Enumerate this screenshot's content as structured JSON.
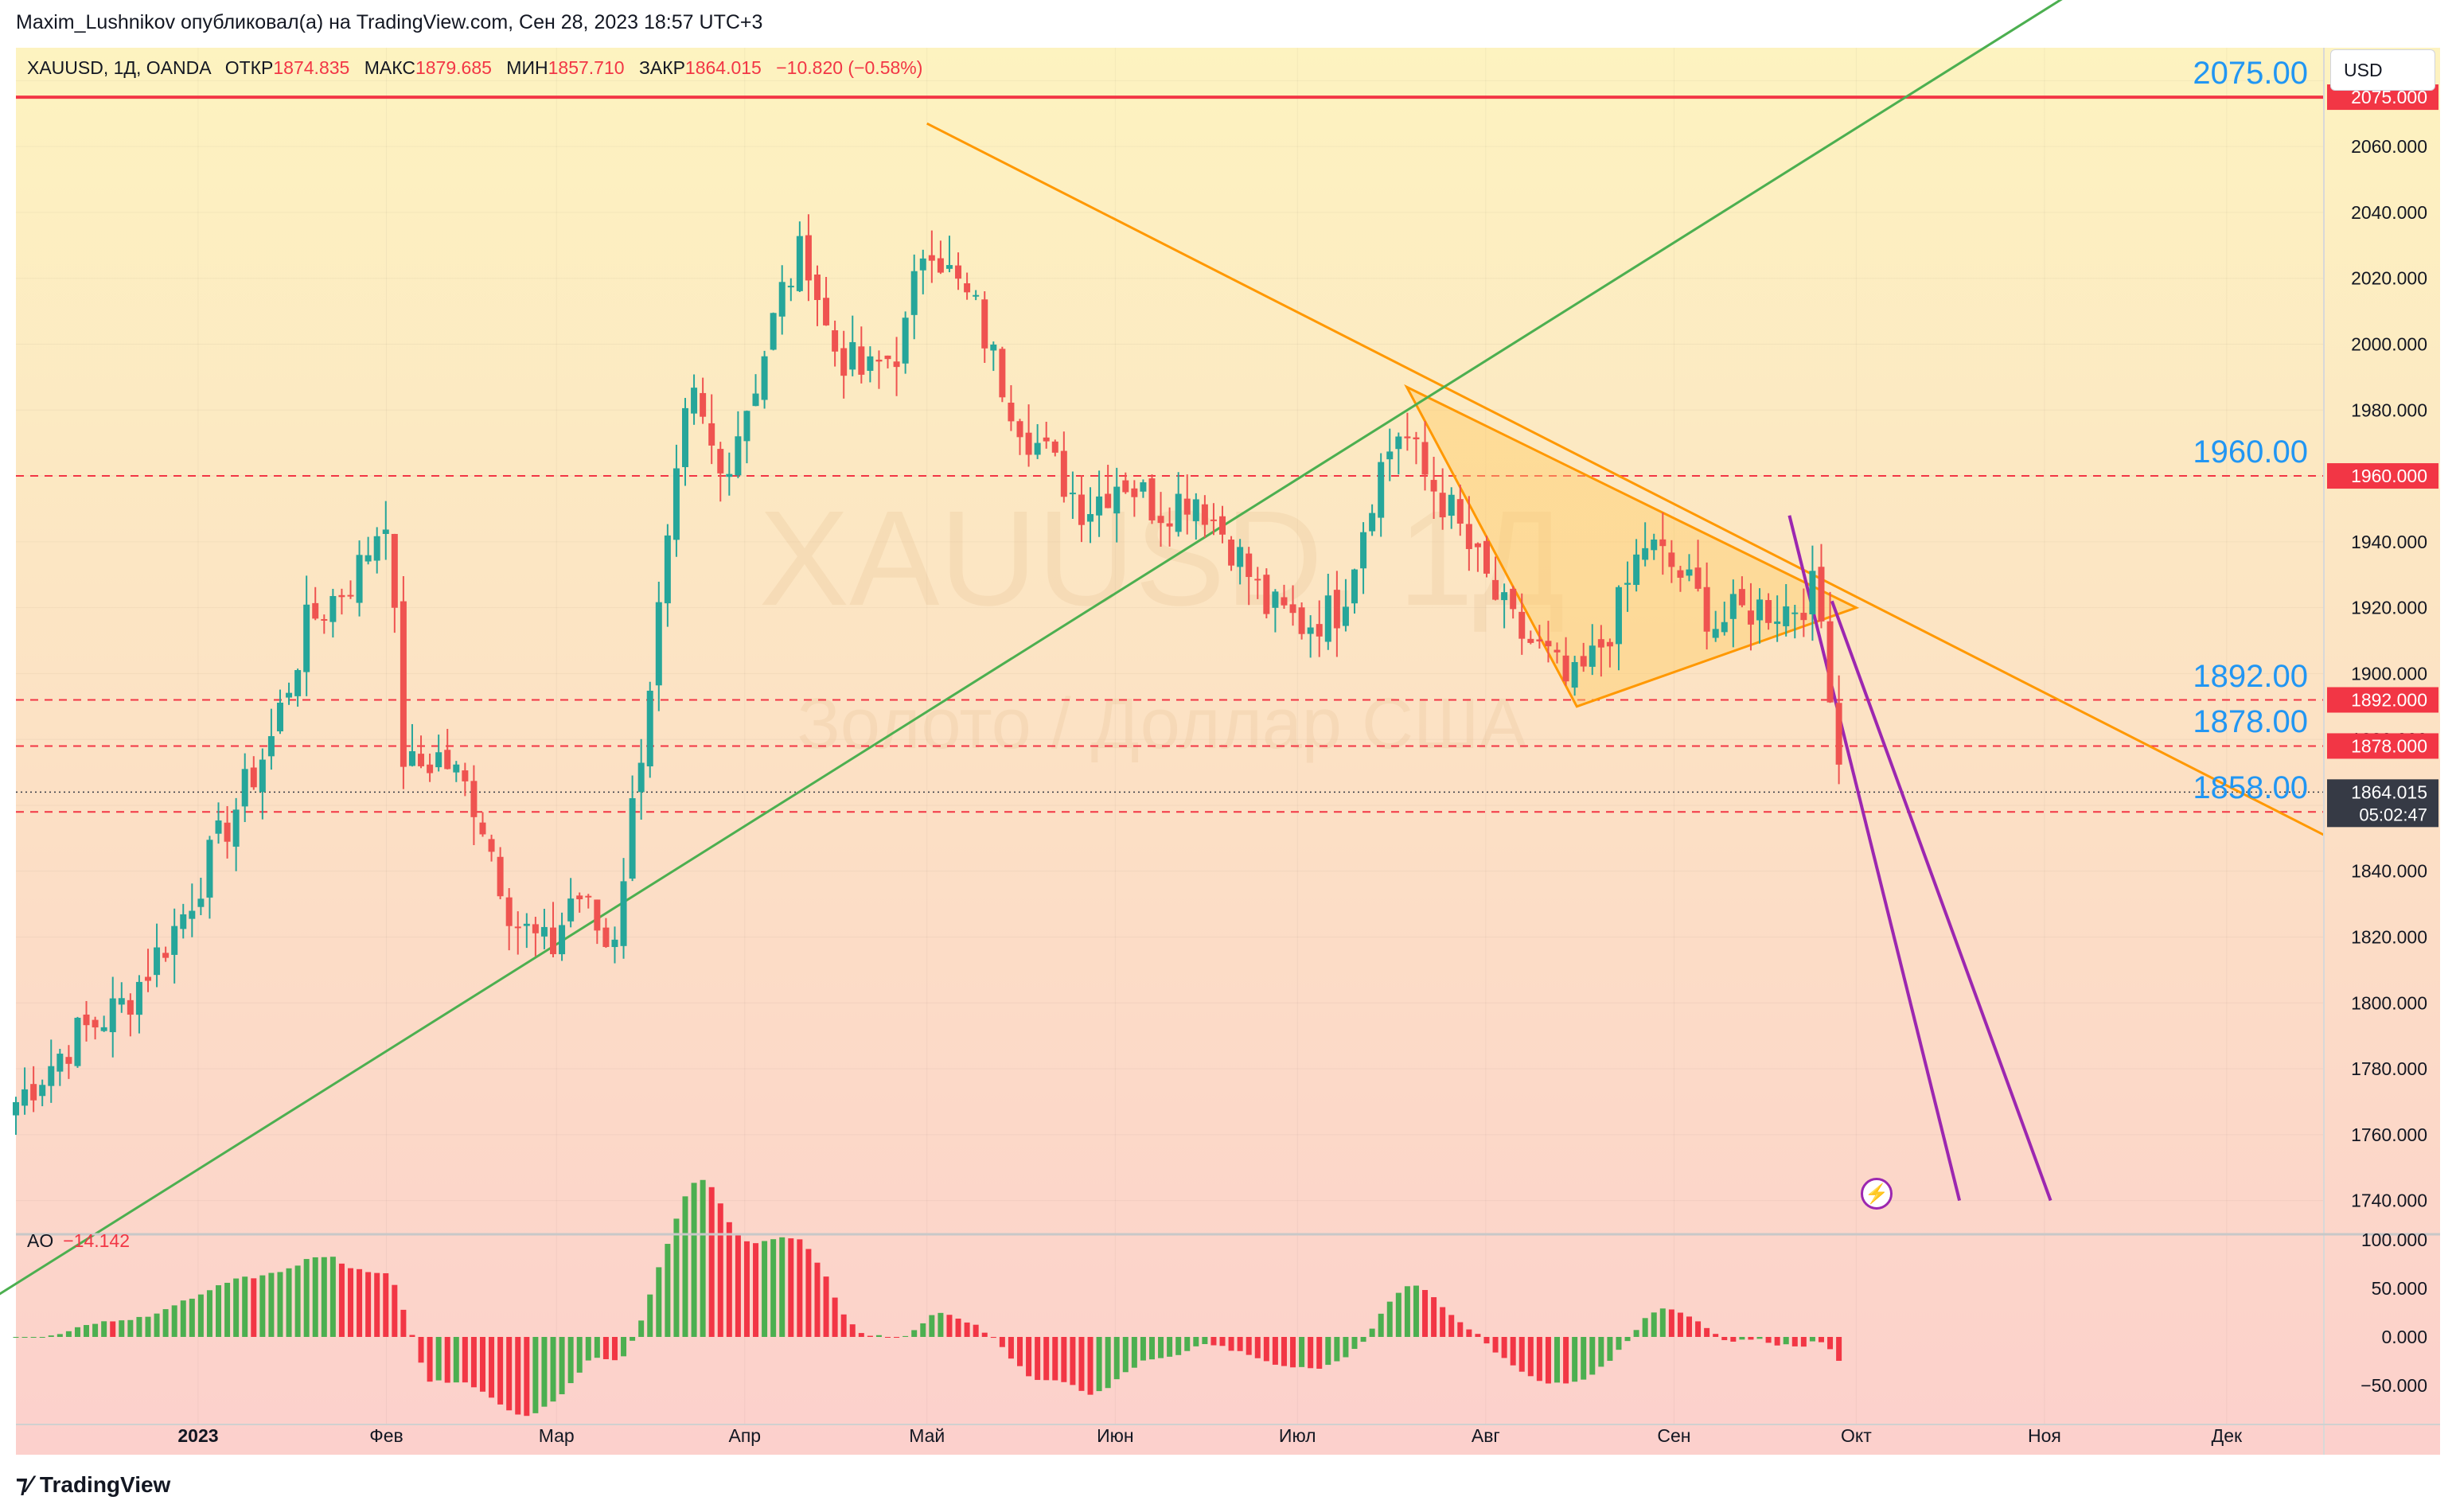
{
  "header": {
    "publisher_line": "Maxim_Lushnikov опубликовал(а) на TradingView.com, Сен 28, 2023 18:57 UTC+3"
  },
  "legend": {
    "symbol": "XAUUSD, 1Д, OANDA",
    "open_label": "ОТКР",
    "open": "1874.835",
    "high_label": "МАКС",
    "high": "1879.685",
    "low_label": "МИН",
    "low": "1857.710",
    "close_label": "ЗАКР",
    "close": "1864.015",
    "change": "−10.820 (−0.58%)"
  },
  "watermark": {
    "symbol": "XAUUSD, 1Д",
    "description": "Золото / Доллар США"
  },
  "currency": "USD",
  "price_axis": {
    "ticks": [
      1740,
      1760,
      1780,
      1800,
      1820,
      1840,
      1860,
      1880,
      1900,
      1920,
      1940,
      1960,
      1980,
      2000,
      2020,
      2040,
      2060,
      2080
    ],
    "tick_labels": [
      "1740.000",
      "1760.000",
      "1780.000",
      "1800.000",
      "1820.000",
      "1840.000",
      "1860.000",
      "1880.000",
      "1900.000",
      "1920.000",
      "1940.000",
      "1960.000",
      "1980.000",
      "2000.000",
      "2020.000",
      "2040.000",
      "2060.000",
      "2080.000"
    ]
  },
  "levels": [
    {
      "price": 2075,
      "label": "2075.00",
      "badge": "2075.000",
      "style": "solid"
    },
    {
      "price": 1960,
      "label": "1960.00",
      "badge": "1960.000",
      "style": "dashed"
    },
    {
      "price": 1892,
      "label": "1892.00",
      "badge": "1892.000",
      "style": "dashed"
    },
    {
      "price": 1878,
      "label": "1878.00",
      "badge": "1878.000",
      "style": "dashed"
    },
    {
      "price": 1858,
      "label": "1858.00",
      "badge": "1858.000",
      "style": "dashed"
    }
  ],
  "current_price": {
    "price": 1864.015,
    "badge": "1864.015",
    "countdown": "05:02:47"
  },
  "time_axis": {
    "labels": [
      "2023",
      "Фев",
      "Мар",
      "Апр",
      "Май",
      "Июн",
      "Июл",
      "Авг",
      "Сен",
      "Окт",
      "Ноя",
      "Дек"
    ],
    "positions_days": [
      0,
      31,
      59,
      90,
      120,
      151,
      181,
      212,
      243,
      273,
      304,
      334
    ]
  },
  "ao": {
    "label": "AO",
    "value": "−14.142",
    "ticks": [
      100,
      50,
      0,
      -50
    ],
    "tick_labels": [
      "100.000",
      "50.000",
      "0.000",
      "−50.000"
    ]
  },
  "colors": {
    "bull": "#26a69a",
    "bear": "#ef5350",
    "ao_up": "#4caf50",
    "ao_down": "#f23645",
    "level": "#f23645",
    "level_label": "#2196f3",
    "trend": "#ff9800",
    "support": "#4caf50",
    "projection": "#9c27b0"
  },
  "chart_data": {
    "type": "candlestick",
    "instrument": "XAUUSD",
    "timeframe": "1D",
    "x_unit": "days since 2023-01-01",
    "ylim": [
      1730,
      2090
    ],
    "xlim": [
      -30,
      350
    ],
    "anchors": [
      [
        -30,
        1770
      ],
      [
        -20,
        1790
      ],
      [
        -12,
        1800
      ],
      [
        -3,
        1825
      ],
      [
        5,
        1855
      ],
      [
        12,
        1880
      ],
      [
        18,
        1915
      ],
      [
        26,
        1930
      ],
      [
        31,
        1950
      ],
      [
        34,
        1870
      ],
      [
        40,
        1875
      ],
      [
        46,
        1860
      ],
      [
        52,
        1825
      ],
      [
        58,
        1815
      ],
      [
        62,
        1835
      ],
      [
        68,
        1815
      ],
      [
        72,
        1865
      ],
      [
        76,
        1920
      ],
      [
        81,
        1985
      ],
      [
        86,
        1960
      ],
      [
        92,
        1990
      ],
      [
        96,
        2015
      ],
      [
        100,
        2030
      ],
      [
        104,
        2000
      ],
      [
        110,
        1990
      ],
      [
        116,
        2000
      ],
      [
        120,
        2035
      ],
      [
        124,
        2020
      ],
      [
        128,
        2010
      ],
      [
        132,
        1990
      ],
      [
        136,
        1975
      ],
      [
        140,
        1965
      ],
      [
        146,
        1950
      ],
      [
        152,
        1960
      ],
      [
        158,
        1950
      ],
      [
        164,
        1955
      ],
      [
        170,
        1940
      ],
      [
        176,
        1920
      ],
      [
        182,
        1915
      ],
      [
        188,
        1920
      ],
      [
        194,
        1960
      ],
      [
        198,
        1975
      ],
      [
        202,
        1960
      ],
      [
        206,
        1950
      ],
      [
        210,
        1935
      ],
      [
        216,
        1915
      ],
      [
        222,
        1905
      ],
      [
        226,
        1895
      ],
      [
        230,
        1905
      ],
      [
        234,
        1920
      ],
      [
        238,
        1940
      ],
      [
        244,
        1930
      ],
      [
        250,
        1915
      ],
      [
        256,
        1920
      ],
      [
        262,
        1920
      ],
      [
        266,
        1925
      ],
      [
        268,
        1910
      ],
      [
        270,
        1875
      ],
      [
        271.5,
        1864
      ]
    ],
    "drawings": {
      "resistance_line": [
        [
          120,
          2067
        ],
        [
          350,
          1851
        ]
      ],
      "support_line": [
        [
          -60,
          1680
        ],
        [
          320,
          2120
        ]
      ],
      "triangle": [
        [
          199,
          1987
        ],
        [
          227,
          1890
        ],
        [
          273,
          1920
        ]
      ],
      "projection_a": [
        [
          262,
          1948
        ],
        [
          290,
          1740
        ]
      ],
      "projection_b": [
        [
          269,
          1922
        ],
        [
          305,
          1740
        ]
      ]
    }
  }
}
